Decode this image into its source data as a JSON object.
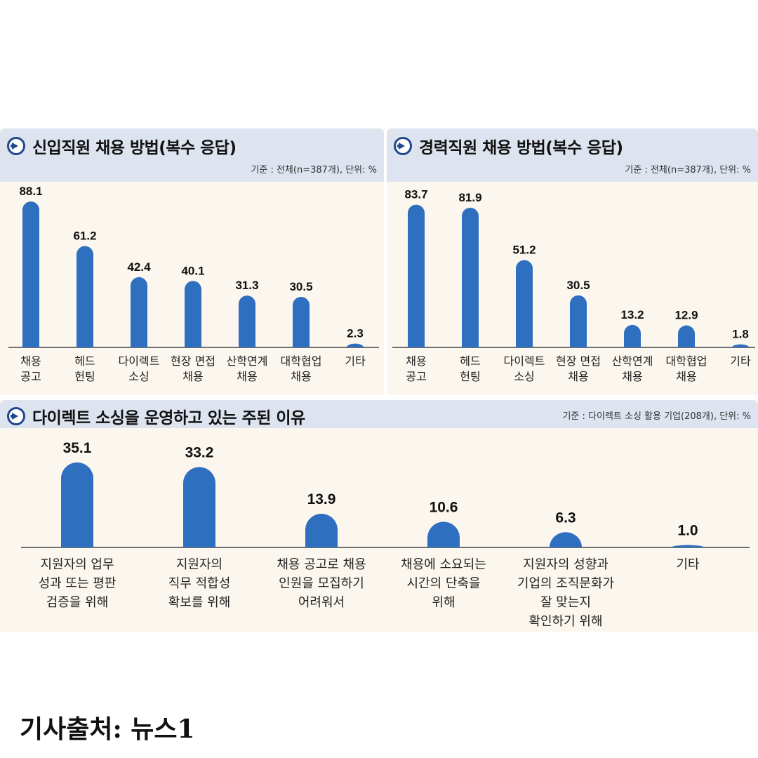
{
  "colors": {
    "bar": "#2f6fc0",
    "header_bg": "#dde3ef",
    "panel_bg": "#fbf6ee",
    "accent": "#1e4a8c"
  },
  "panels": {
    "new_hires": {
      "title": "신입직원 채용 방법(복수 응답)",
      "note": "기준 : 전체(n=387개), 단위: %",
      "icon": "arrow-right-circle-icon"
    },
    "experienced": {
      "title": "경력직원 채용 방법(복수 응답)",
      "note": "기준 : 전체(n=387개), 단위: %",
      "icon": "arrow-right-circle-icon"
    },
    "direct_sourcing": {
      "title": "다이렉트 소싱을 운영하고 있는 주된 이유",
      "note": "기준 : 다이렉트 소싱 활용 기업(208개), 단위: %",
      "icon": "arrow-right-circle-icon"
    }
  },
  "chart_data": [
    {
      "type": "bar",
      "title": "신입직원 채용 방법(복수 응답)",
      "unit": "%",
      "categories": [
        [
          "채용",
          "공고"
        ],
        [
          "헤드",
          "헌팅"
        ],
        [
          "다이렉트",
          "소싱"
        ],
        [
          "현장 면접",
          "채용"
        ],
        [
          "산학연계",
          "채용"
        ],
        [
          "대학협업",
          "채용"
        ],
        [
          "기타"
        ]
      ],
      "values": [
        88.1,
        61.2,
        42.4,
        40.1,
        31.3,
        30.5,
        2.3
      ],
      "ylim": [
        0,
        100
      ]
    },
    {
      "type": "bar",
      "title": "경력직원 채용 방법(복수 응답)",
      "unit": "%",
      "categories": [
        [
          "채용",
          "공고"
        ],
        [
          "헤드",
          "헌팅"
        ],
        [
          "다이렉트",
          "소싱"
        ],
        [
          "현장 면접",
          "채용"
        ],
        [
          "산학연계",
          "채용"
        ],
        [
          "대학협업",
          "채용"
        ],
        [
          "기타"
        ]
      ],
      "values": [
        83.7,
        81.9,
        51.2,
        30.5,
        13.2,
        12.9,
        1.8
      ],
      "ylim": [
        0,
        100
      ]
    },
    {
      "type": "bar",
      "title": "다이렉트 소싱을 운영하고 있는 주된 이유",
      "unit": "%",
      "categories": [
        [
          "지원자의 업무",
          "성과 또는 평판",
          "검증을 위해"
        ],
        [
          "지원자의",
          "직무 적합성",
          "확보를 위해"
        ],
        [
          "채용 공고로 채용",
          "인원을 모집하기",
          "어려워서"
        ],
        [
          "채용에 소요되는",
          "시간의 단축을",
          "위해"
        ],
        [
          "지원자의 성향과",
          "기업의 조직문화가",
          "잘 맞는지",
          "확인하기 위해"
        ],
        [
          "기타"
        ]
      ],
      "values": [
        35.1,
        33.2,
        13.9,
        10.6,
        6.3,
        1.0
      ],
      "ylim": [
        0,
        40
      ]
    }
  ],
  "source": "기사출처: 뉴스1"
}
